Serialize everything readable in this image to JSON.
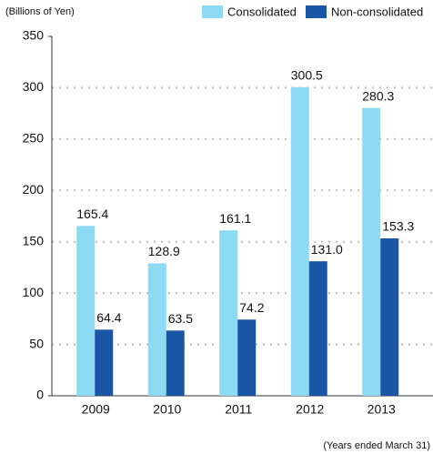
{
  "chart_data": {
    "type": "bar",
    "y_axis_label": "(Billions of Yen)",
    "x_axis_note": "(Years ended March 31)",
    "categories": [
      "2009",
      "2010",
      "2011",
      "2012",
      "2013"
    ],
    "series": [
      {
        "name": "Consolidated",
        "color": "#8ddaf4",
        "values": [
          165.4,
          128.9,
          161.1,
          300.5,
          280.3
        ],
        "value_labels": [
          "165.4",
          "128.9",
          "161.1",
          "300.5",
          "280.3"
        ]
      },
      {
        "name": "Non-consolidated",
        "color": "#1b56a6",
        "values": [
          64.4,
          63.5,
          74.2,
          131.0,
          153.3
        ],
        "value_labels": [
          "64.4",
          "63.5",
          "74.2",
          "131.0",
          "153.3"
        ]
      }
    ],
    "ylim": [
      0,
      350
    ],
    "yticks": [
      0,
      50,
      100,
      150,
      200,
      250,
      300,
      350
    ],
    "grid": true
  }
}
